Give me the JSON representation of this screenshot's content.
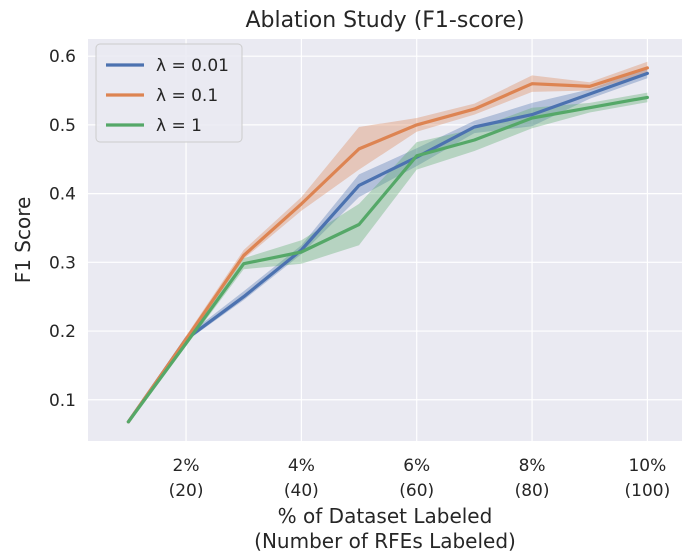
{
  "chart_data": {
    "type": "line",
    "title": "Ablation Study (F1-score)",
    "xlabel_line1": "% of Dataset Labeled",
    "xlabel_line2": "(Number of RFEs Labeled)",
    "ylabel": "F1 Score",
    "xlim": [
      0.3,
      10.6
    ],
    "ylim": [
      0.04,
      0.625
    ],
    "x_ticks": [
      {
        "value": 2,
        "line1": "2%",
        "line2": "(20)"
      },
      {
        "value": 4,
        "line1": "4%",
        "line2": "(40)"
      },
      {
        "value": 6,
        "line1": "6%",
        "line2": "(60)"
      },
      {
        "value": 8,
        "line1": "8%",
        "line2": "(80)"
      },
      {
        "value": 10,
        "line1": "10%",
        "line2": "(100)"
      }
    ],
    "y_ticks": [
      {
        "value": 0.1,
        "label": "0.1"
      },
      {
        "value": 0.2,
        "label": "0.2"
      },
      {
        "value": 0.3,
        "label": "0.3"
      },
      {
        "value": 0.4,
        "label": "0.4"
      },
      {
        "value": 0.5,
        "label": "0.5"
      },
      {
        "value": 0.6,
        "label": "0.6"
      }
    ],
    "x": [
      1,
      2,
      3,
      4,
      5,
      6,
      7,
      8,
      9,
      10
    ],
    "grid": true,
    "legend_position": "top-left",
    "series": [
      {
        "name": "λ = 0.01",
        "color": "#4c72b0",
        "values": [
          0.068,
          0.188,
          0.25,
          0.318,
          0.412,
          0.453,
          0.497,
          0.515,
          0.545,
          0.575
        ],
        "lower": [
          0.066,
          0.185,
          0.245,
          0.312,
          0.395,
          0.44,
          0.488,
          0.498,
          0.538,
          0.568
        ],
        "upper": [
          0.07,
          0.193,
          0.258,
          0.325,
          0.428,
          0.466,
          0.506,
          0.532,
          0.552,
          0.583
        ]
      },
      {
        "name": "λ = 0.1",
        "color": "#dd8452",
        "values": [
          0.068,
          0.188,
          0.31,
          0.385,
          0.465,
          0.5,
          0.523,
          0.56,
          0.556,
          0.583
        ],
        "lower": [
          0.066,
          0.185,
          0.305,
          0.375,
          0.435,
          0.49,
          0.515,
          0.548,
          0.55,
          0.575
        ],
        "upper": [
          0.07,
          0.193,
          0.318,
          0.395,
          0.497,
          0.51,
          0.531,
          0.572,
          0.562,
          0.592
        ]
      },
      {
        "name": "λ = 1",
        "color": "#55a868",
        "values": [
          0.068,
          0.182,
          0.298,
          0.315,
          0.355,
          0.455,
          0.478,
          0.51,
          0.525,
          0.54
        ],
        "lower": [
          0.066,
          0.178,
          0.29,
          0.298,
          0.325,
          0.435,
          0.462,
          0.495,
          0.518,
          0.533
        ],
        "upper": [
          0.07,
          0.186,
          0.306,
          0.332,
          0.385,
          0.475,
          0.494,
          0.525,
          0.532,
          0.547
        ]
      }
    ]
  }
}
